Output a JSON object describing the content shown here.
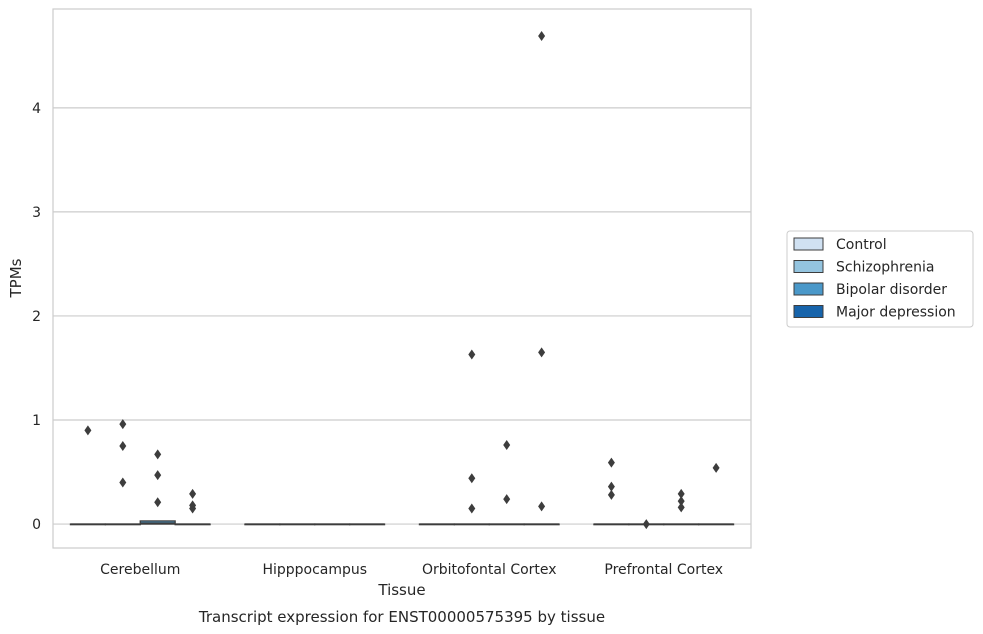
{
  "chart_data": {
    "type": "box",
    "title": "",
    "caption": "Transcript expression for ENST00000575395 by tissue",
    "xlabel": "Tissue",
    "ylabel": "TPMs",
    "categories": [
      "Cerebellum",
      "Hipppocampus",
      "Orbitofontal Cortex",
      "Prefrontal Cortex"
    ],
    "ylim": [
      -0.23,
      4.95
    ],
    "yticks": [
      0,
      1,
      2,
      3,
      4
    ],
    "grid": true,
    "legend_position": "right",
    "series": [
      {
        "name": "Control",
        "color": "#d0e1f2",
        "boxes": [
          {
            "category": "Cerebellum",
            "q1": 0,
            "median": 0,
            "q3": 0,
            "whisker_low": 0,
            "whisker_high": 0,
            "outliers": [
              0.9
            ]
          },
          {
            "category": "Hipppocampus",
            "q1": 0,
            "median": 0,
            "q3": 0,
            "whisker_low": 0,
            "whisker_high": 0,
            "outliers": []
          },
          {
            "category": "Orbitofontal Cortex",
            "q1": 0,
            "median": 0,
            "q3": 0,
            "whisker_low": 0,
            "whisker_high": 0,
            "outliers": []
          },
          {
            "category": "Prefrontal Cortex",
            "q1": 0,
            "median": 0,
            "q3": 0,
            "whisker_low": 0,
            "whisker_high": 0,
            "outliers": [
              0.59,
              0.36,
              0.28
            ]
          }
        ]
      },
      {
        "name": "Schizophrenia",
        "color": "#94c4df",
        "boxes": [
          {
            "category": "Cerebellum",
            "q1": 0,
            "median": 0,
            "q3": 0,
            "whisker_low": 0,
            "whisker_high": 0,
            "outliers": [
              0.96,
              0.75,
              0.4
            ]
          },
          {
            "category": "Hipppocampus",
            "q1": 0,
            "median": 0,
            "q3": 0,
            "whisker_low": 0,
            "whisker_high": 0,
            "outliers": []
          },
          {
            "category": "Orbitofontal Cortex",
            "q1": 0,
            "median": 0,
            "q3": 0,
            "whisker_low": 0,
            "whisker_high": 0,
            "outliers": [
              1.63,
              0.44,
              0.15
            ]
          },
          {
            "category": "Prefrontal Cortex",
            "q1": 0,
            "median": 0,
            "q3": 0,
            "whisker_low": 0,
            "whisker_high": 0,
            "outliers": [
              0.0
            ]
          }
        ]
      },
      {
        "name": "Bipolar disorder",
        "color": "#4a98c9",
        "boxes": [
          {
            "category": "Cerebellum",
            "q1": 0,
            "median": 0.01,
            "q3": 0.03,
            "whisker_low": 0,
            "whisker_high": 0.03,
            "outliers": [
              0.67,
              0.47,
              0.21
            ]
          },
          {
            "category": "Hipppocampus",
            "q1": 0,
            "median": 0,
            "q3": 0,
            "whisker_low": 0,
            "whisker_high": 0,
            "outliers": []
          },
          {
            "category": "Orbitofontal Cortex",
            "q1": 0,
            "median": 0,
            "q3": 0,
            "whisker_low": 0,
            "whisker_high": 0,
            "outliers": [
              0.76,
              0.24
            ]
          },
          {
            "category": "Prefrontal Cortex",
            "q1": 0,
            "median": 0,
            "q3": 0,
            "whisker_low": 0,
            "whisker_high": 0,
            "outliers": [
              0.29,
              0.22,
              0.16
            ]
          }
        ]
      },
      {
        "name": "Major depression",
        "color": "#1764ab",
        "boxes": [
          {
            "category": "Cerebellum",
            "q1": 0,
            "median": 0,
            "q3": 0,
            "whisker_low": 0,
            "whisker_high": 0,
            "outliers": [
              0.29,
              0.18,
              0.15
            ]
          },
          {
            "category": "Hipppocampus",
            "q1": 0,
            "median": 0,
            "q3": 0,
            "whisker_low": 0,
            "whisker_high": 0,
            "outliers": []
          },
          {
            "category": "Orbitofontal Cortex",
            "q1": 0,
            "median": 0,
            "q3": 0,
            "whisker_low": 0,
            "whisker_high": 0,
            "outliers": [
              4.69,
              1.65,
              0.17
            ]
          },
          {
            "category": "Prefrontal Cortex",
            "q1": 0,
            "median": 0,
            "q3": 0,
            "whisker_low": 0,
            "whisker_high": 0,
            "outliers": [
              0.54
            ]
          }
        ]
      }
    ]
  }
}
